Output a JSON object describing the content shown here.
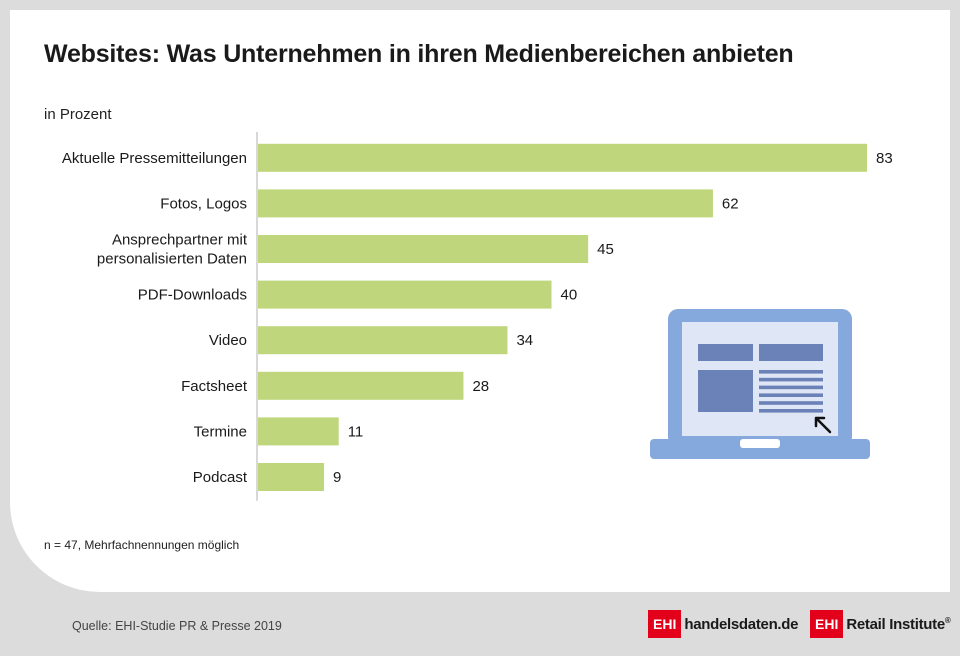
{
  "header": {
    "title": "Websites: Was Unternehmen in ihren Medienbereichen anbieten",
    "unit": "in Prozent"
  },
  "footer": {
    "note": "n = 47, Mehrfachnennungen möglich",
    "source": "Quelle: EHI-Studie PR & Presse 2019",
    "logo1_box": "EHI",
    "logo1_text": "handelsdaten.de",
    "logo2_box": "EHI",
    "logo2_text": "Retail Institute",
    "logo2_mark": "®"
  },
  "colors": {
    "bar": "#bfd67c",
    "axis": "#b0b0b0",
    "laptop_frame": "#85a9dc",
    "laptop_screen": "#dfe6f5",
    "laptop_blocks": "#6b82b8",
    "logo_red": "#e2001a"
  },
  "illustration": {
    "icon": "laptop-website-icon"
  },
  "chart_data": {
    "type": "bar",
    "orientation": "horizontal",
    "title": "Websites: Was Unternehmen in ihren Medienbereichen anbieten",
    "ylabel": "in Prozent",
    "categories": [
      [
        "Aktuelle Pressemitteilungen"
      ],
      [
        "Fotos, Logos"
      ],
      [
        "Ansprechpartner mit",
        "personalisierten Daten"
      ],
      [
        "PDF-Downloads"
      ],
      [
        "Video"
      ],
      [
        "Factsheet"
      ],
      [
        "Termine"
      ],
      [
        "Podcast"
      ]
    ],
    "values": [
      83,
      62,
      45,
      40,
      34,
      28,
      11,
      9
    ],
    "xlim": [
      0,
      83
    ],
    "grid": false,
    "data_labels": true
  }
}
